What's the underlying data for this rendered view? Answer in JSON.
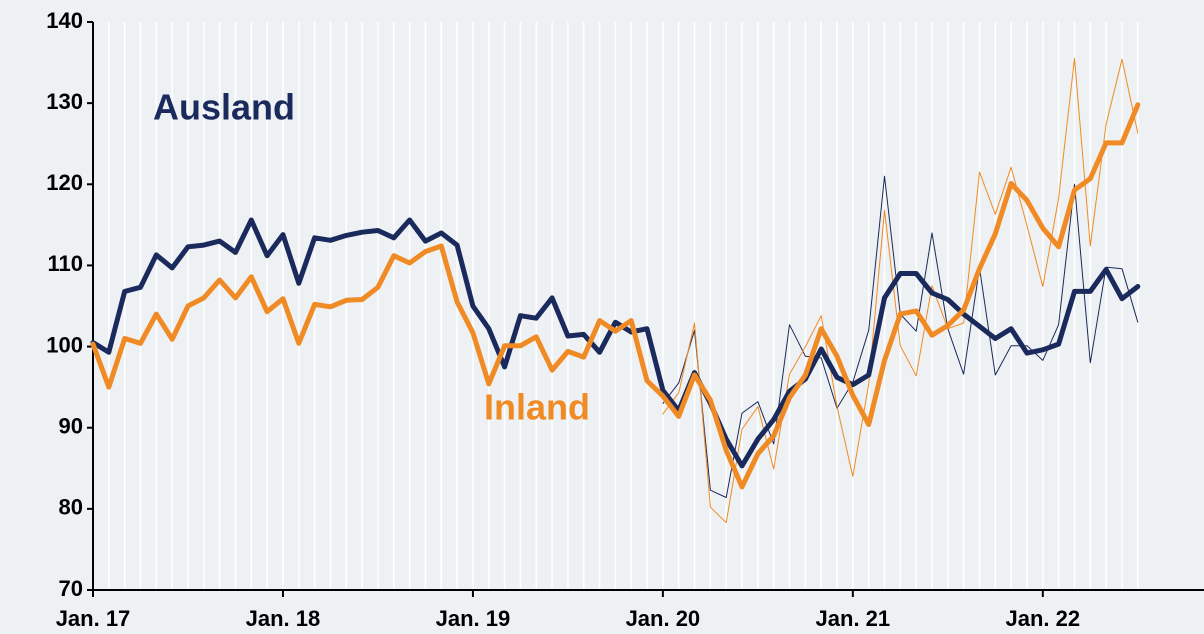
{
  "chart_data": {
    "type": "line",
    "annotations": [
      "Ausland",
      "Inland"
    ],
    "categories": [
      "Jan. 17",
      null,
      null,
      null,
      null,
      null,
      null,
      null,
      null,
      null,
      null,
      null,
      "Jan. 18",
      null,
      null,
      null,
      null,
      null,
      null,
      null,
      null,
      null,
      null,
      null,
      "Jan. 19",
      null,
      null,
      null,
      null,
      null,
      null,
      null,
      null,
      null,
      null,
      null,
      "Jan. 20",
      null,
      null,
      null,
      null,
      null,
      null,
      null,
      null,
      null,
      null,
      null,
      "Jan. 21",
      null,
      null,
      null,
      null,
      null,
      null,
      null,
      null,
      null,
      null,
      null,
      "Jan. 22",
      null,
      null,
      null,
      null,
      null,
      null
    ],
    "series": [
      {
        "name": "Ausland",
        "color": "#1b2a5c",
        "width": 5,
        "values": [
          100.5,
          99.3,
          106.8,
          107.3,
          111.3,
          109.7,
          112.3,
          112.5,
          113,
          111.6,
          115.6,
          111.2,
          113.8,
          107.8,
          113.4,
          113.1,
          113.7,
          114.1,
          114.3,
          113.4,
          115.6,
          113,
          114,
          112.5,
          105,
          102.2,
          97.5,
          103.8,
          103.5,
          106,
          101.3,
          101.5,
          99.3,
          103,
          101.8,
          102.2,
          94.6,
          92.1,
          96.8,
          93,
          88.6,
          85.3,
          88.6,
          91,
          94.5,
          96,
          99.7,
          96.2,
          95.3,
          96.5,
          106,
          109,
          109,
          106.6,
          105.8,
          104,
          102.5,
          101,
          102.2,
          99.2,
          99.6,
          100.3,
          106.8,
          106.8,
          109.5,
          105.9,
          107.4
        ]
      },
      {
        "name": "Inland",
        "color": "#f08a24",
        "width": 5,
        "values": [
          100.3,
          95,
          101,
          100.4,
          104,
          100.9,
          105,
          106,
          108.2,
          106,
          108.6,
          104.3,
          105.9,
          100.4,
          105.2,
          104.9,
          105.7,
          105.8,
          107.3,
          111.2,
          110.3,
          111.7,
          112.4,
          105.5,
          101.7,
          95.4,
          100.1,
          100.1,
          101.2,
          97.1,
          99.4,
          98.7,
          103.2,
          101.9,
          103.2,
          95.8,
          93.9,
          91.4,
          96.5,
          93.4,
          87.2,
          82.7,
          86.8,
          89,
          93.7,
          96.5,
          102.2,
          98.8,
          94,
          90.4,
          98.3,
          104,
          104.4,
          101.4,
          102.6,
          104.5,
          109.6,
          113.9,
          120.1,
          118,
          114.6,
          112.3,
          119.3,
          120.7,
          125.1,
          125.1,
          129.8
        ]
      },
      {
        "color": "#1b2a5c",
        "width": 1,
        "values": [
          null,
          null,
          null,
          null,
          null,
          null,
          null,
          null,
          null,
          null,
          null,
          null,
          null,
          null,
          null,
          null,
          null,
          null,
          null,
          null,
          null,
          null,
          null,
          null,
          null,
          null,
          null,
          null,
          null,
          null,
          null,
          null,
          null,
          null,
          null,
          null,
          93,
          95.5,
          102,
          82.3,
          81.4,
          91.8,
          93.2,
          88,
          102.7,
          98.8,
          98.6,
          92.4,
          95.6,
          102,
          121,
          104,
          101.9,
          114,
          102.2,
          96.6,
          109.7,
          96.5,
          100.1,
          100.1,
          98.3,
          102.7,
          120,
          98,
          109.8,
          109.6,
          103
        ]
      },
      {
        "color": "#f08a24",
        "width": 1,
        "values": [
          null,
          null,
          null,
          null,
          null,
          null,
          null,
          null,
          null,
          null,
          null,
          null,
          null,
          null,
          null,
          null,
          null,
          null,
          null,
          null,
          null,
          null,
          null,
          null,
          null,
          null,
          null,
          null,
          null,
          null,
          null,
          null,
          null,
          null,
          null,
          null,
          91.7,
          94.3,
          102.9,
          80.2,
          78.3,
          89.8,
          92.6,
          84.9,
          96.6,
          100,
          103.8,
          92.6,
          84,
          95.4,
          116.8,
          100.1,
          96.4,
          107.5,
          102.2,
          102.9,
          121.5,
          116.3,
          122.1,
          114.9,
          107.4,
          118.3,
          135.5,
          112.4,
          127.4,
          135.4,
          126.3
        ]
      }
    ],
    "ylim": [
      70,
      140
    ],
    "yticks": [
      70,
      80,
      90,
      100,
      110,
      120,
      130,
      140
    ],
    "grid": true
  }
}
